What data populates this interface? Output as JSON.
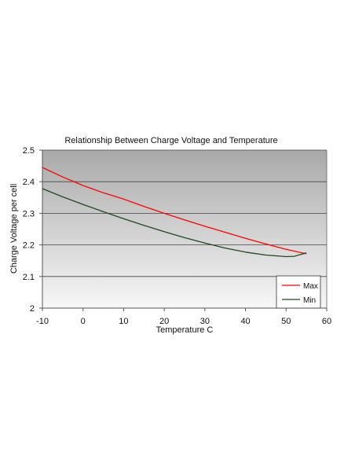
{
  "chart_data": {
    "type": "line",
    "title": "Relationship Between Charge Voltage and Temperature",
    "xlabel": "Temperature  C",
    "ylabel": "Charge Voltage per cell",
    "xlim": [
      -10,
      60
    ],
    "ylim": [
      2,
      2.5
    ],
    "xticks": [
      "-10",
      "0",
      "10",
      "20",
      "30",
      "40",
      "50",
      "60"
    ],
    "yticks": [
      "2",
      "2.1",
      "2.2",
      "2.3",
      "2.4",
      "2.5"
    ],
    "grid": "horizontal",
    "legend_position": "bottom-right",
    "series": [
      {
        "name": "Max",
        "color": "#ff0000",
        "x": [
          -10,
          -5,
          0,
          5,
          10,
          15,
          20,
          25,
          30,
          35,
          40,
          45,
          50,
          55
        ],
        "y": [
          2.445,
          2.415,
          2.388,
          2.365,
          2.345,
          2.322,
          2.3,
          2.279,
          2.259,
          2.24,
          2.221,
          2.203,
          2.186,
          2.172
        ]
      },
      {
        "name": "Min",
        "color": "#1e4a1e",
        "x": [
          -10,
          -5,
          0,
          5,
          10,
          15,
          20,
          25,
          30,
          35,
          40,
          45,
          50,
          52,
          55
        ],
        "y": [
          2.378,
          2.352,
          2.328,
          2.305,
          2.283,
          2.262,
          2.242,
          2.223,
          2.206,
          2.19,
          2.177,
          2.168,
          2.163,
          2.164,
          2.175
        ]
      }
    ]
  }
}
